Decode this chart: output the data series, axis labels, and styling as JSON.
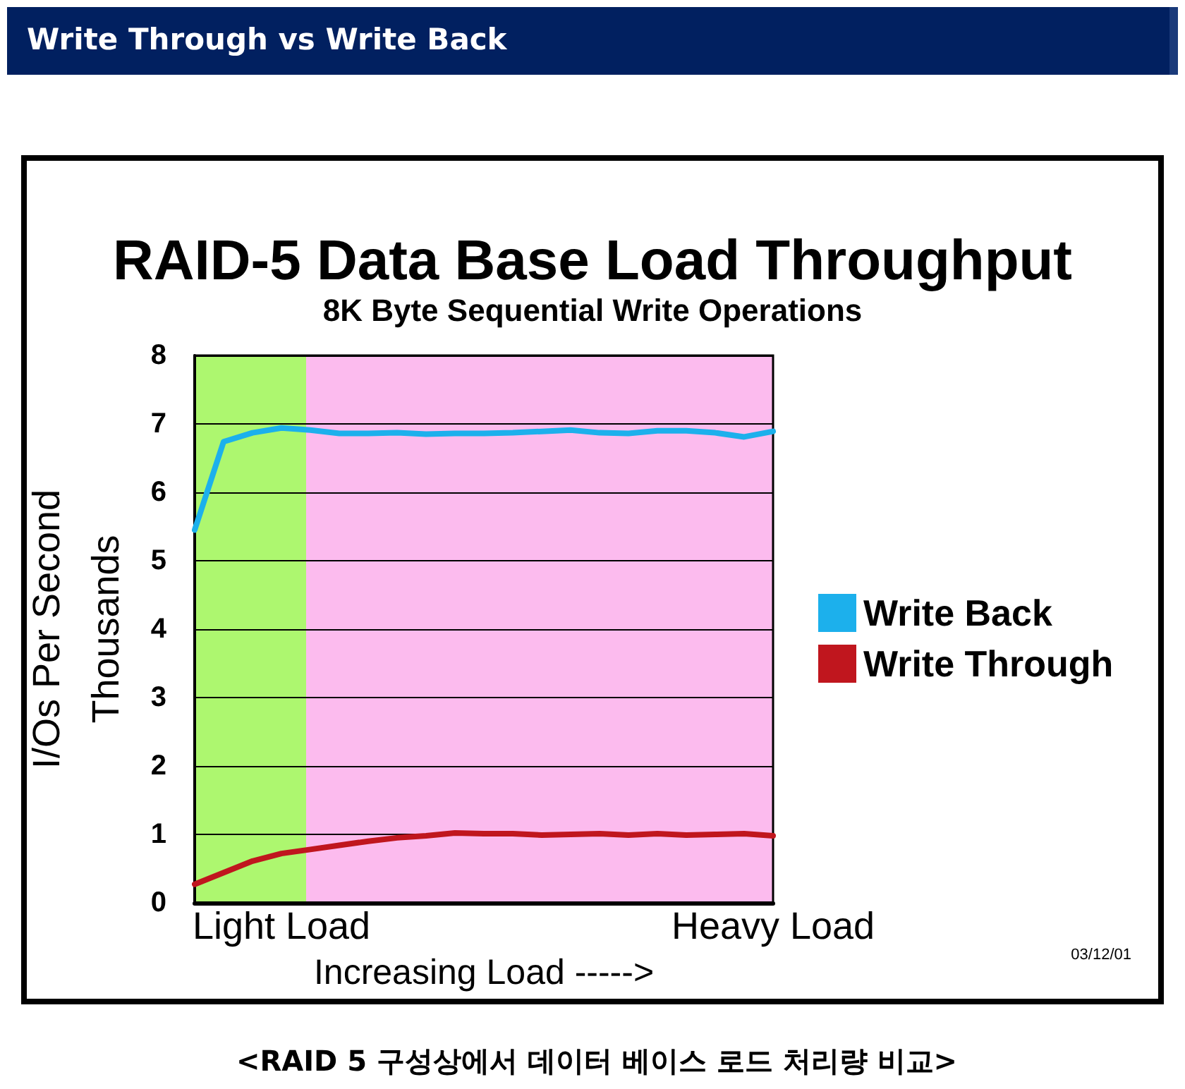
{
  "chart_data": {
    "type": "line",
    "title": "RAID-5 Data Base Load Throughput",
    "subtitle": "8K Byte Sequential Write Operations",
    "xlabel": "Increasing Load ----->",
    "ylabel": "I/Os Per Second\nThousands",
    "annotations": [
      "Write Through vs Write Back",
      "03/12/01",
      "<RAID 5 구성상에서 데이터 베이스 로드 처리량 비교>"
    ],
    "categories": [
      null,
      null,
      null,
      "Light Load",
      null,
      null,
      null,
      null,
      null,
      null,
      null,
      null,
      null,
      null,
      null,
      null,
      null,
      null,
      null,
      null,
      "Heavy Load"
    ],
    "ylim": [
      0,
      8
    ],
    "yticks": [
      0,
      1,
      2,
      3,
      4,
      5,
      6,
      7,
      8
    ],
    "grid": "y",
    "legend": "right",
    "series": [
      {
        "name": "Write Back",
        "color": "#1cb0ec",
        "values": [
          5.45,
          6.74,
          6.87,
          6.94,
          6.91,
          6.86,
          6.86,
          6.87,
          6.85,
          6.86,
          6.86,
          6.87,
          6.89,
          6.91,
          6.87,
          6.86,
          6.9,
          6.9,
          6.87,
          6.81,
          6.89
        ]
      },
      {
        "name": "Write Through",
        "color": "#c0161e",
        "values": [
          0.27,
          0.44,
          0.61,
          0.72,
          0.78,
          0.84,
          0.9,
          0.95,
          0.98,
          1.02,
          1.01,
          1.01,
          0.99,
          1.0,
          1.01,
          0.99,
          1.01,
          0.99,
          1.0,
          1.01,
          0.98
        ]
      }
    ]
  }
}
